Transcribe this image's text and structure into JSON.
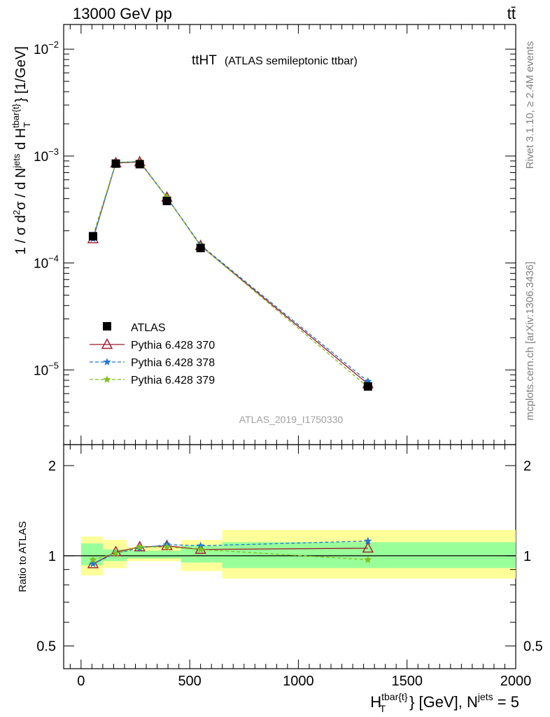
{
  "header": {
    "left": "13000 GeV pp",
    "right": "tt̄"
  },
  "side_labels": {
    "rivet": "Rivet 3.1.10, ≥ 2.4M events",
    "mcplots": "mcplots.cern.ch [arXiv:1306.3436]"
  },
  "watermark": "ATLAS_2019_I1750330",
  "plot_title": {
    "main": "ttHT",
    "sub": "(ATLAS semileptonic ttbar)"
  },
  "chart_data": [
    {
      "type": "line",
      "panel": "main",
      "ylabel": "1 / σ d²σ / d N^jets d H_T^tbar{t} [1/GeV]",
      "xlim": [
        -80,
        2000
      ],
      "ylim": [
        2e-06,
        0.017
      ],
      "log_y": true,
      "ytick_labels": [
        "10^-5",
        "10^-4",
        "10^-3",
        "10^-2"
      ],
      "legend_position": "bottom-left",
      "x": [
        55,
        160,
        270,
        395,
        550,
        1320
      ],
      "series": [
        {
          "name": "ATLAS",
          "marker": "square",
          "color": "#000000",
          "values": [
            0.000178,
            0.00085,
            0.00084,
            0.00038,
            0.000138,
            7e-06
          ]
        },
        {
          "name": "Pythia 6.428 370",
          "marker": "triangle",
          "color": "#a0182f",
          "dash": "solid",
          "values": [
            0.000168,
            0.00086,
            0.00088,
            0.00041,
            0.000145,
            7.4e-06
          ]
        },
        {
          "name": "Pythia 6.428 378",
          "marker": "star",
          "color": "#1f78d4",
          "dash": "dashed",
          "values": [
            0.000168,
            0.00087,
            0.00089,
            0.00041,
            0.000147,
            7.8e-06
          ]
        },
        {
          "name": "Pythia 6.428 379",
          "marker": "star",
          "color": "#7fbf1f",
          "dash": "dashed",
          "values": [
            0.00018,
            0.00087,
            0.00089,
            0.00041,
            0.000145,
            6.9e-06
          ]
        }
      ]
    },
    {
      "type": "line",
      "panel": "ratio",
      "ylabel": "Ratio to ATLAS",
      "xlabel": "H_T^tbar{t} [GeV], N^jets = 5",
      "xlim": [
        -80,
        2000
      ],
      "ylim": [
        0.42,
        2.35
      ],
      "log_y": true,
      "xtick_labels": [
        "0",
        "500",
        "1000",
        "1500",
        "2000"
      ],
      "ytick_labels": [
        "0.5",
        "1",
        "2"
      ],
      "reference_line": 1,
      "uncertainty_bands": [
        {
          "x_range": [
            0,
            100
          ],
          "inner": [
            0.93,
            1.1
          ],
          "outer": [
            0.86,
            1.16
          ]
        },
        {
          "x_range": [
            100,
            210
          ],
          "inner": [
            0.96,
            1.05
          ],
          "outer": [
            0.91,
            1.13
          ]
        },
        {
          "x_range": [
            210,
            460
          ],
          "inner": [
            0.98,
            1.04
          ],
          "outer": [
            0.96,
            1.07
          ]
        },
        {
          "x_range": [
            460,
            650
          ],
          "inner": [
            0.95,
            1.08
          ],
          "outer": [
            0.89,
            1.13
          ]
        },
        {
          "x_range": [
            650,
            2000
          ],
          "inner": [
            0.91,
            1.11
          ],
          "outer": [
            0.84,
            1.22
          ]
        }
      ],
      "band_colors": {
        "inner": "#99ff99",
        "outer": "#ffff99"
      },
      "x": [
        55,
        160,
        270,
        395,
        550,
        1320
      ],
      "series": [
        {
          "name": "Pythia 6.428 370",
          "marker": "triangle",
          "color": "#a0182f",
          "dash": "solid",
          "values": [
            0.94,
            1.03,
            1.07,
            1.08,
            1.05,
            1.06
          ]
        },
        {
          "name": "Pythia 6.428 378",
          "marker": "star",
          "color": "#1f78d4",
          "dash": "dashed",
          "values": [
            0.94,
            1.02,
            1.06,
            1.09,
            1.08,
            1.12
          ]
        },
        {
          "name": "Pythia 6.428 379",
          "marker": "star",
          "color": "#7fbf1f",
          "dash": "dashed",
          "values": [
            0.97,
            1.02,
            1.07,
            1.07,
            1.05,
            0.97
          ]
        }
      ]
    }
  ]
}
